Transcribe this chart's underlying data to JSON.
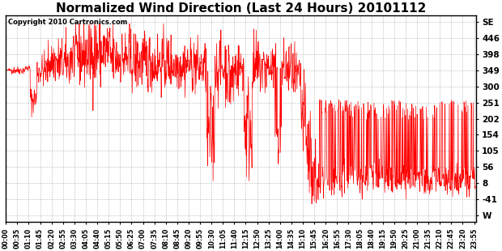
{
  "title": "Normalized Wind Direction (Last 24 Hours) 20101112",
  "copyright_text": "Copyright 2010 Cartronics.com",
  "line_color": "#ff0000",
  "bg_color": "#ffffff",
  "plot_bg_color": "#ffffff",
  "grid_color": "#888888",
  "title_fontsize": 11,
  "copyright_fontsize": 6,
  "ytick_labels": [
    "SE",
    "446",
    "398",
    "349",
    "300",
    "251",
    "202",
    "154",
    "105",
    "56",
    "8",
    "-41",
    "W"
  ],
  "ytick_values": [
    495,
    446,
    398,
    349,
    300,
    251,
    202,
    154,
    105,
    56,
    8,
    -41,
    -90
  ],
  "ylim": [
    -110,
    515
  ],
  "xlim": [
    0,
    1440
  ]
}
